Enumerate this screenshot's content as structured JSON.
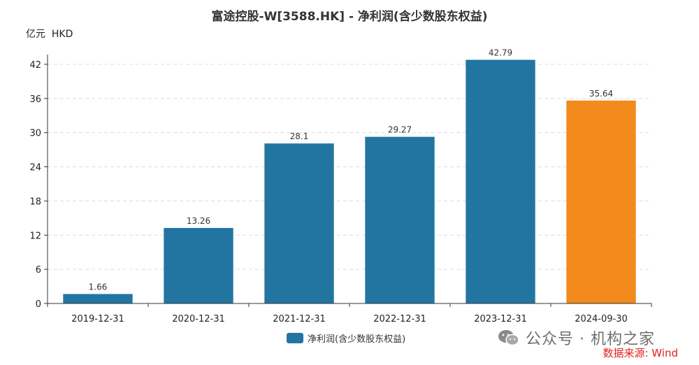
{
  "chart_data": {
    "type": "bar",
    "title": "富途控股-W[3588.HK] - 净利润(含少数股东权益)",
    "unit_label": "亿元  HKD",
    "categories": [
      "2019-12-31",
      "2020-12-31",
      "2021-12-31",
      "2022-12-31",
      "2023-12-31",
      "2024-09-30"
    ],
    "values": [
      1.66,
      13.26,
      28.1,
      29.27,
      42.79,
      35.64
    ],
    "value_labels": [
      "1.66",
      "13.26",
      "28.1",
      "29.27",
      "42.79",
      "35.64"
    ],
    "bar_colors": [
      "#2275a1",
      "#2275a1",
      "#2275a1",
      "#2275a1",
      "#2275a1",
      "#f28a1c"
    ],
    "ylim": [
      0,
      42
    ],
    "yticks": [
      0,
      6,
      12,
      18,
      24,
      30,
      36,
      42
    ],
    "grid": true,
    "legend": {
      "label": "净利润(含少数股东权益)",
      "color": "#2275a1",
      "position": "bottom-center"
    }
  },
  "watermark": {
    "text": "公众号 · 机构之家",
    "icon": "wechat-icon"
  },
  "source_text": "数据来源: Wind"
}
